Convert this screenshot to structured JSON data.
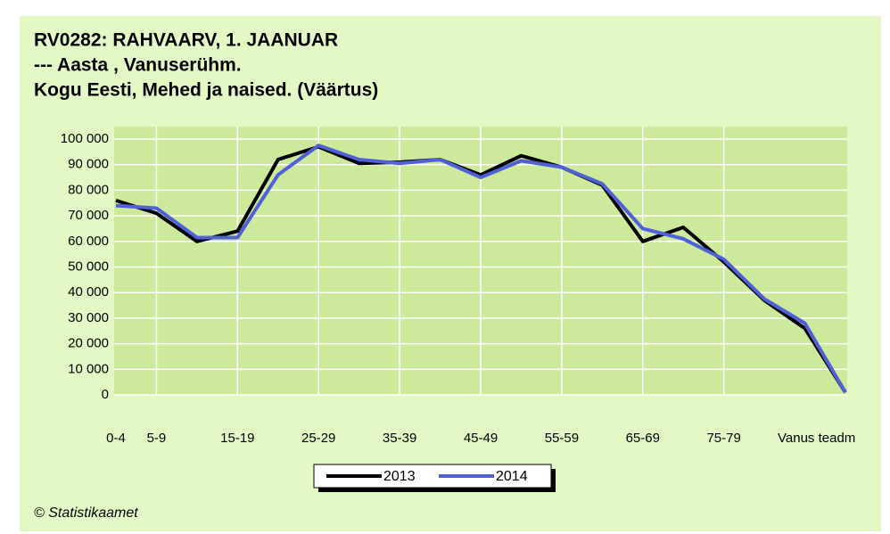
{
  "chart_data": {
    "type": "line",
    "title_lines": [
      "RV0282: RAHVAARV, 1. JAANUAR",
      "--- Aasta , Vanuserühm.",
      "Kogu Eesti, Mehed ja naised. (Väärtus)"
    ],
    "categories": [
      "0-4",
      "5-9",
      null,
      "15-19",
      null,
      "25-29",
      null,
      "35-39",
      null,
      "45-49",
      null,
      "55-59",
      null,
      "65-69",
      null,
      "75-79",
      null,
      null,
      "Vanus teadm"
    ],
    "series": [
      {
        "name": "2013",
        "color": "#000000",
        "values": [
          76000,
          71000,
          60000,
          64000,
          92000,
          97000,
          90500,
          91000,
          92000,
          86000,
          93500,
          89000,
          82000,
          60000,
          65500,
          52000,
          37000,
          26000,
          1000
        ]
      },
      {
        "name": "2014",
        "color": "#5060d8",
        "values": [
          74000,
          73000,
          61500,
          61500,
          86000,
          97500,
          92000,
          90500,
          92000,
          85000,
          91500,
          89000,
          82500,
          65000,
          61000,
          53000,
          37500,
          28000,
          1000
        ]
      }
    ],
    "ylim": [
      0,
      100000
    ],
    "yticks": [
      0,
      {
        "value": 10000,
        "label": "10 000"
      },
      {
        "value": 20000,
        "label": "20 000"
      },
      {
        "value": 30000,
        "label": "30 000"
      },
      {
        "value": 40000,
        "label": "40 000"
      },
      {
        "value": 50000,
        "label": "50 000"
      },
      {
        "value": 60000,
        "label": "60 000"
      },
      {
        "value": 70000,
        "label": "70 000"
      },
      {
        "value": 80000,
        "label": "80 000"
      },
      {
        "value": 90000,
        "label": "90 000"
      },
      {
        "value": 100000,
        "label": "100 000"
      }
    ],
    "grid": true,
    "legend": "bottom",
    "footer": "© Statistikaamet"
  }
}
